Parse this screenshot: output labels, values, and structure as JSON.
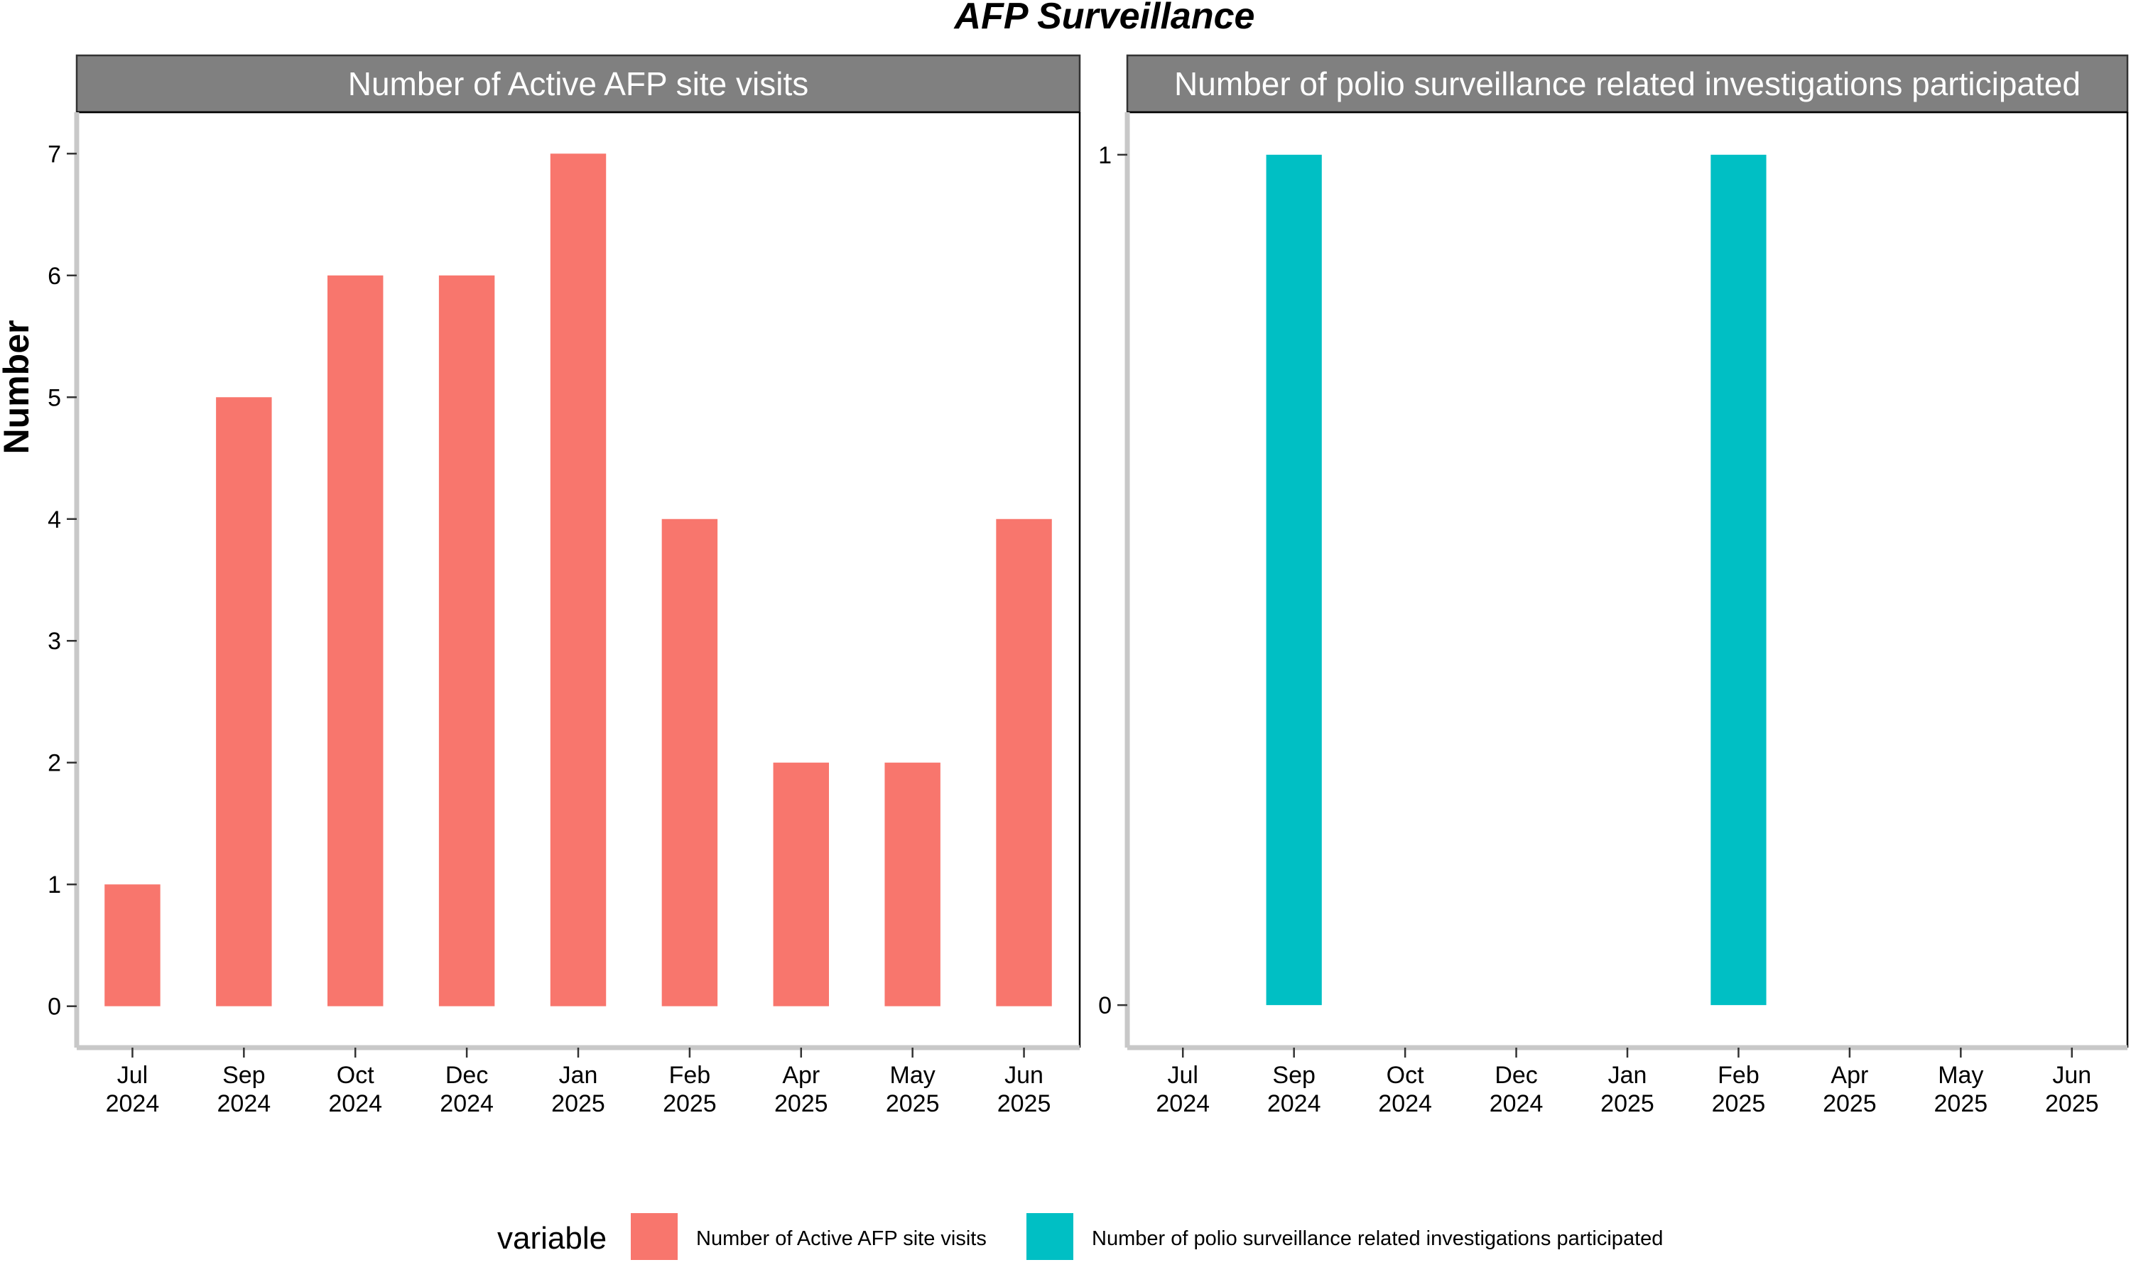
{
  "chart_data": {
    "type": "bar",
    "title": "AFP Surveillance",
    "ylabel": "Number",
    "categories": [
      "Jul\n2024",
      "Sep\n2024",
      "Oct\n2024",
      "Dec\n2024",
      "Jan\n2025",
      "Feb\n2025",
      "Apr\n2025",
      "May\n2025",
      "Jun\n2025"
    ],
    "legend": {
      "title": "variable",
      "position": "bottom",
      "entries": [
        {
          "name": "Number of Active AFP site visits",
          "color": "#F8766D"
        },
        {
          "name": "Number of polio surveillance related investigations participated",
          "color": "#00BFC4"
        }
      ]
    },
    "panels": [
      {
        "strip_label": "Number of Active AFP site visits",
        "series_name": "Number of Active AFP site visits",
        "color": "#F8766D",
        "values": [
          1,
          5,
          6,
          6,
          7,
          4,
          2,
          2,
          4
        ],
        "yticks": [
          0,
          1,
          2,
          3,
          4,
          5,
          6,
          7
        ],
        "ylim": [
          -0.34,
          7.34
        ]
      },
      {
        "strip_label": "Number of polio surveillance related investigations participated",
        "series_name": "Number of polio surveillance related investigations participated",
        "color": "#00BFC4",
        "values": [
          0,
          1,
          0,
          0,
          0,
          1,
          0,
          0,
          0
        ],
        "yticks": [
          0,
          1
        ],
        "ylim": [
          -0.05,
          1.05
        ]
      }
    ],
    "grid": false,
    "strip_color": "#808080"
  }
}
